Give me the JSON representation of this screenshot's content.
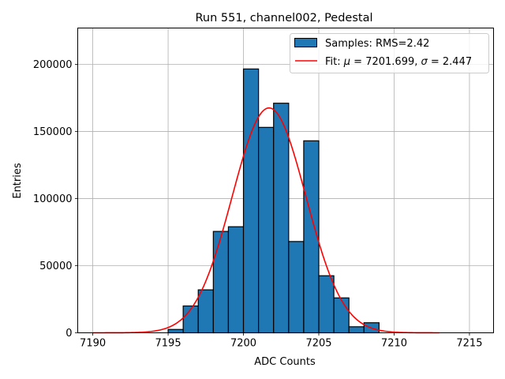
{
  "chart_data": {
    "type": "bar",
    "title": "Run 551, channel002, Pedestal",
    "xlabel": "ADC Counts",
    "ylabel": "Entries",
    "xlim": [
      7189.0,
      7216.6
    ],
    "ylim": [
      0,
      227000
    ],
    "xticks": [
      7190,
      7195,
      7200,
      7205,
      7210,
      7215
    ],
    "yticks": [
      0,
      50000,
      100000,
      150000,
      200000
    ],
    "grid": true,
    "legend_position": "top-right",
    "histogram": {
      "name": "Samples: RMS=2.42",
      "color": "#1f77b4",
      "bin_width": 1,
      "bins": [
        {
          "left": 7195,
          "count": 2500
        },
        {
          "left": 7196,
          "count": 20000
        },
        {
          "left": 7197,
          "count": 32000
        },
        {
          "left": 7198,
          "count": 75500
        },
        {
          "left": 7199,
          "count": 79000
        },
        {
          "left": 7200,
          "count": 196500
        },
        {
          "left": 7201,
          "count": 153000
        },
        {
          "left": 7202,
          "count": 171000
        },
        {
          "left": 7203,
          "count": 68000
        },
        {
          "left": 7204,
          "count": 143000
        },
        {
          "left": 7205,
          "count": 42500
        },
        {
          "left": 7206,
          "count": 26000
        },
        {
          "left": 7207,
          "count": 4500
        },
        {
          "left": 7208,
          "count": 7500
        }
      ]
    },
    "fit": {
      "name_prefix": "Fit: ",
      "mu_symbol": "μ",
      "mu_value": " = 7201.699, ",
      "sigma_symbol": "σ",
      "sigma_value": " = 2.447",
      "color": "#ff0000",
      "mu": 7201.699,
      "sigma": 2.447,
      "amplitude": 167500,
      "x_range": [
        7190,
        7213
      ]
    }
  }
}
